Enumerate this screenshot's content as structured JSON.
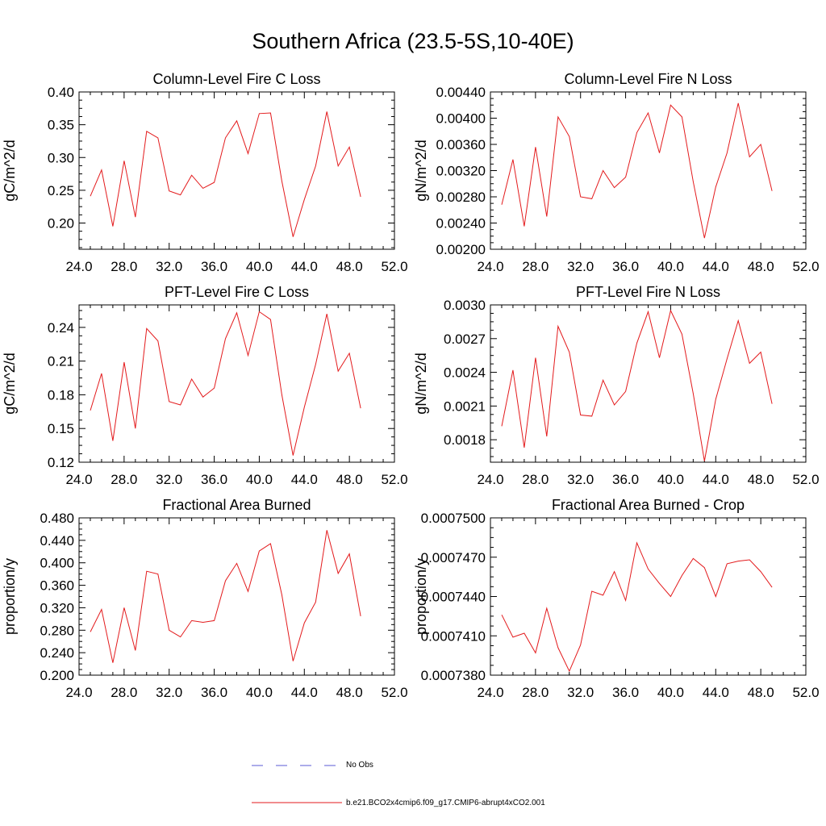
{
  "figure": {
    "title": "Southern Africa (23.5-5S,10-40E)"
  },
  "legend": {
    "items": [
      {
        "label": "No Obs",
        "color": "#5b5bd6",
        "dash": "dash"
      },
      {
        "label": "b.e21.BCO2x4cmip6.f09_g17.CMIP6-abrupt4xCO2.001",
        "color": "#e31a1c",
        "dash": "solid"
      }
    ]
  },
  "chart_data": [
    {
      "type": "line",
      "title": "Column-Level Fire C Loss",
      "ylabel": "gC/m^2/d",
      "xlim": [
        24,
        52
      ],
      "ylim": [
        0.16,
        0.4
      ],
      "xticks": [
        "24.0",
        "28.0",
        "32.0",
        "36.0",
        "40.0",
        "44.0",
        "48.0",
        "52.0"
      ],
      "yticks": [
        "0.20",
        "0.25",
        "0.30",
        "0.35",
        "0.40"
      ],
      "x": [
        25,
        26,
        27,
        28,
        29,
        30,
        31,
        32,
        33,
        34,
        35,
        36,
        37,
        38,
        39,
        40,
        41,
        42,
        43,
        44,
        45,
        46,
        47,
        48,
        49
      ],
      "series": [
        {
          "color": "#e31a1c",
          "values": [
            0.241,
            0.281,
            0.195,
            0.295,
            0.209,
            0.34,
            0.33,
            0.249,
            0.243,
            0.273,
            0.253,
            0.262,
            0.33,
            0.356,
            0.306,
            0.367,
            0.368,
            0.264,
            0.179,
            0.236,
            0.287,
            0.37,
            0.287,
            0.316,
            0.24
          ]
        }
      ]
    },
    {
      "type": "line",
      "title": "Column-Level Fire N Loss",
      "ylabel": "gN/m^2/d",
      "xlim": [
        24,
        52
      ],
      "ylim": [
        0.002,
        0.0044
      ],
      "xticks": [
        "24.0",
        "28.0",
        "32.0",
        "36.0",
        "40.0",
        "44.0",
        "48.0",
        "52.0"
      ],
      "yticks": [
        "0.00200",
        "0.00240",
        "0.00280",
        "0.00320",
        "0.00360",
        "0.00400",
        "0.00440"
      ],
      "x": [
        25,
        26,
        27,
        28,
        29,
        30,
        31,
        32,
        33,
        34,
        35,
        36,
        37,
        38,
        39,
        40,
        41,
        42,
        43,
        44,
        45,
        46,
        47,
        48,
        49
      ],
      "series": [
        {
          "color": "#e31a1c",
          "values": [
            0.00268,
            0.00337,
            0.00235,
            0.00356,
            0.0025,
            0.00402,
            0.00372,
            0.0028,
            0.00277,
            0.0032,
            0.00294,
            0.0031,
            0.00378,
            0.00408,
            0.00347,
            0.0042,
            0.00402,
            0.00303,
            0.00217,
            0.00295,
            0.00347,
            0.00423,
            0.00341,
            0.0036,
            0.00289
          ]
        }
      ]
    },
    {
      "type": "line",
      "title": "PFT-Level Fire C Loss",
      "ylabel": "gC/m^2/d",
      "xlim": [
        24,
        52
      ],
      "ylim": [
        0.12,
        0.26
      ],
      "xticks": [
        "24.0",
        "28.0",
        "32.0",
        "36.0",
        "40.0",
        "44.0",
        "48.0",
        "52.0"
      ],
      "yticks": [
        "0.12",
        "0.15",
        "0.18",
        "0.21",
        "0.24"
      ],
      "x": [
        25,
        26,
        27,
        28,
        29,
        30,
        31,
        32,
        33,
        34,
        35,
        36,
        37,
        38,
        39,
        40,
        41,
        42,
        43,
        44,
        45,
        46,
        47,
        48,
        49
      ],
      "series": [
        {
          "color": "#e31a1c",
          "values": [
            0.166,
            0.199,
            0.139,
            0.209,
            0.15,
            0.239,
            0.228,
            0.174,
            0.171,
            0.194,
            0.178,
            0.186,
            0.23,
            0.253,
            0.215,
            0.254,
            0.247,
            0.18,
            0.126,
            0.169,
            0.207,
            0.252,
            0.201,
            0.217,
            0.168
          ]
        }
      ]
    },
    {
      "type": "line",
      "title": "PFT-Level Fire N Loss",
      "ylabel": "gN/m^2/d",
      "xlim": [
        24,
        52
      ],
      "ylim": [
        0.0016,
        0.003
      ],
      "xticks": [
        "24.0",
        "28.0",
        "32.0",
        "36.0",
        "40.0",
        "44.0",
        "48.0",
        "52.0"
      ],
      "yticks": [
        "0.0018",
        "0.0021",
        "0.0024",
        "0.0027",
        "0.0030"
      ],
      "x": [
        25,
        26,
        27,
        28,
        29,
        30,
        31,
        32,
        33,
        34,
        35,
        36,
        37,
        38,
        39,
        40,
        41,
        42,
        43,
        44,
        45,
        46,
        47,
        48,
        49
      ],
      "series": [
        {
          "color": "#e31a1c",
          "values": [
            0.00192,
            0.00242,
            0.00173,
            0.00253,
            0.00183,
            0.00281,
            0.00258,
            0.00202,
            0.00201,
            0.00233,
            0.00211,
            0.00223,
            0.00266,
            0.00294,
            0.00253,
            0.00295,
            0.00274,
            0.00221,
            0.00161,
            0.00216,
            0.00252,
            0.00286,
            0.00248,
            0.00258,
            0.00212
          ]
        }
      ]
    },
    {
      "type": "line",
      "title": "Fractional Area Burned",
      "ylabel": "proportion/y",
      "xlim": [
        24,
        52
      ],
      "ylim": [
        0.2,
        0.48
      ],
      "xticks": [
        "24.0",
        "28.0",
        "32.0",
        "36.0",
        "40.0",
        "44.0",
        "48.0",
        "52.0"
      ],
      "yticks": [
        "0.200",
        "0.240",
        "0.280",
        "0.320",
        "0.360",
        "0.400",
        "0.440",
        "0.480"
      ],
      "x": [
        25,
        26,
        27,
        28,
        29,
        30,
        31,
        32,
        33,
        34,
        35,
        36,
        37,
        38,
        39,
        40,
        41,
        42,
        43,
        44,
        45,
        46,
        47,
        48,
        49
      ],
      "series": [
        {
          "color": "#e31a1c",
          "values": [
            0.277,
            0.317,
            0.222,
            0.32,
            0.244,
            0.385,
            0.38,
            0.28,
            0.268,
            0.297,
            0.294,
            0.297,
            0.368,
            0.399,
            0.349,
            0.421,
            0.434,
            0.343,
            0.225,
            0.293,
            0.33,
            0.458,
            0.381,
            0.416,
            0.305
          ]
        }
      ]
    },
    {
      "type": "line",
      "title": "Fractional Area Burned - Crop",
      "ylabel": "proportion/y",
      "xlim": [
        24,
        52
      ],
      "ylim": [
        0.000738,
        0.00075
      ],
      "xticks": [
        "24.0",
        "28.0",
        "32.0",
        "36.0",
        "40.0",
        "44.0",
        "48.0",
        "52.0"
      ],
      "yticks": [
        "0.0007380",
        "0.0007410",
        "0.0007440",
        "0.0007470",
        "0.0007500"
      ],
      "x": [
        25,
        26,
        27,
        28,
        29,
        30,
        31,
        32,
        33,
        34,
        35,
        36,
        37,
        38,
        39,
        40,
        41,
        42,
        43,
        44,
        45,
        46,
        47,
        48,
        49
      ],
      "series": [
        {
          "color": "#e31a1c",
          "values": [
            0.0007426,
            0.0007409,
            0.0007412,
            0.0007397,
            0.0007431,
            0.0007401,
            0.0007383,
            0.0007403,
            0.0007444,
            0.0007441,
            0.0007459,
            0.0007437,
            0.0007481,
            0.0007461,
            0.000745,
            0.000744,
            0.0007456,
            0.0007469,
            0.0007462,
            0.000744,
            0.0007465,
            0.0007467,
            0.0007468,
            0.0007459,
            0.0007447
          ]
        }
      ]
    }
  ]
}
